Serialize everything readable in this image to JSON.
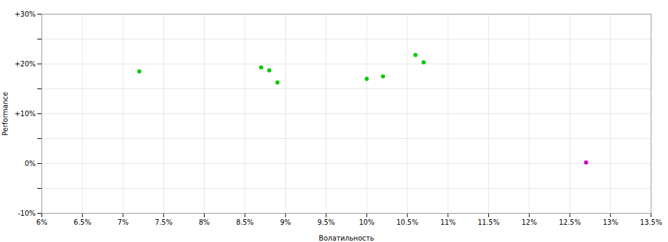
{
  "chart_data": {
    "type": "scatter",
    "xlabel": "Волатильность",
    "ylabel": "Performance",
    "series": [
      {
        "color": "#00cc00",
        "x": [
          0.072,
          0.087,
          0.088,
          0.089,
          0.1,
          0.102,
          0.106,
          0.107
        ],
        "values": [
          0.185,
          0.193,
          0.187,
          0.163,
          0.17,
          0.175,
          0.218,
          0.203
        ]
      },
      {
        "color": "#cc00cc",
        "x": [
          0.127
        ],
        "values": [
          0.002
        ]
      }
    ],
    "xlim": [
      0.06,
      0.135
    ],
    "ylim": [
      -0.1,
      0.3
    ],
    "xticks": [
      {
        "value": 0.06,
        "label": "6%"
      },
      {
        "value": 0.065,
        "label": "6.5%"
      },
      {
        "value": 0.07,
        "label": "7%"
      },
      {
        "value": 0.075,
        "label": "7.5%"
      },
      {
        "value": 0.08,
        "label": "8%"
      },
      {
        "value": 0.085,
        "label": "8.5%"
      },
      {
        "value": 0.09,
        "label": "9%"
      },
      {
        "value": 0.095,
        "label": "9.5%"
      },
      {
        "value": 0.1,
        "label": "10%"
      },
      {
        "value": 0.105,
        "label": "10.5%"
      },
      {
        "value": 0.11,
        "label": "11%"
      },
      {
        "value": 0.115,
        "label": "11.5%"
      },
      {
        "value": 0.12,
        "label": "12%"
      },
      {
        "value": 0.125,
        "label": "12.5%"
      },
      {
        "value": 0.13,
        "label": "13%"
      },
      {
        "value": 0.135,
        "label": "13.5%"
      }
    ],
    "yticks": [
      {
        "value": -0.1,
        "label": "-10%"
      },
      {
        "value": -0.05,
        "label": null
      },
      {
        "value": 0.0,
        "label": "0%"
      },
      {
        "value": 0.05,
        "label": null
      },
      {
        "value": 0.1,
        "label": "+10%"
      },
      {
        "value": 0.15,
        "label": null
      },
      {
        "value": 0.2,
        "label": "+20%"
      },
      {
        "value": 0.25,
        "label": null
      },
      {
        "value": 0.3,
        "label": "+30%"
      }
    ],
    "grid": true
  }
}
